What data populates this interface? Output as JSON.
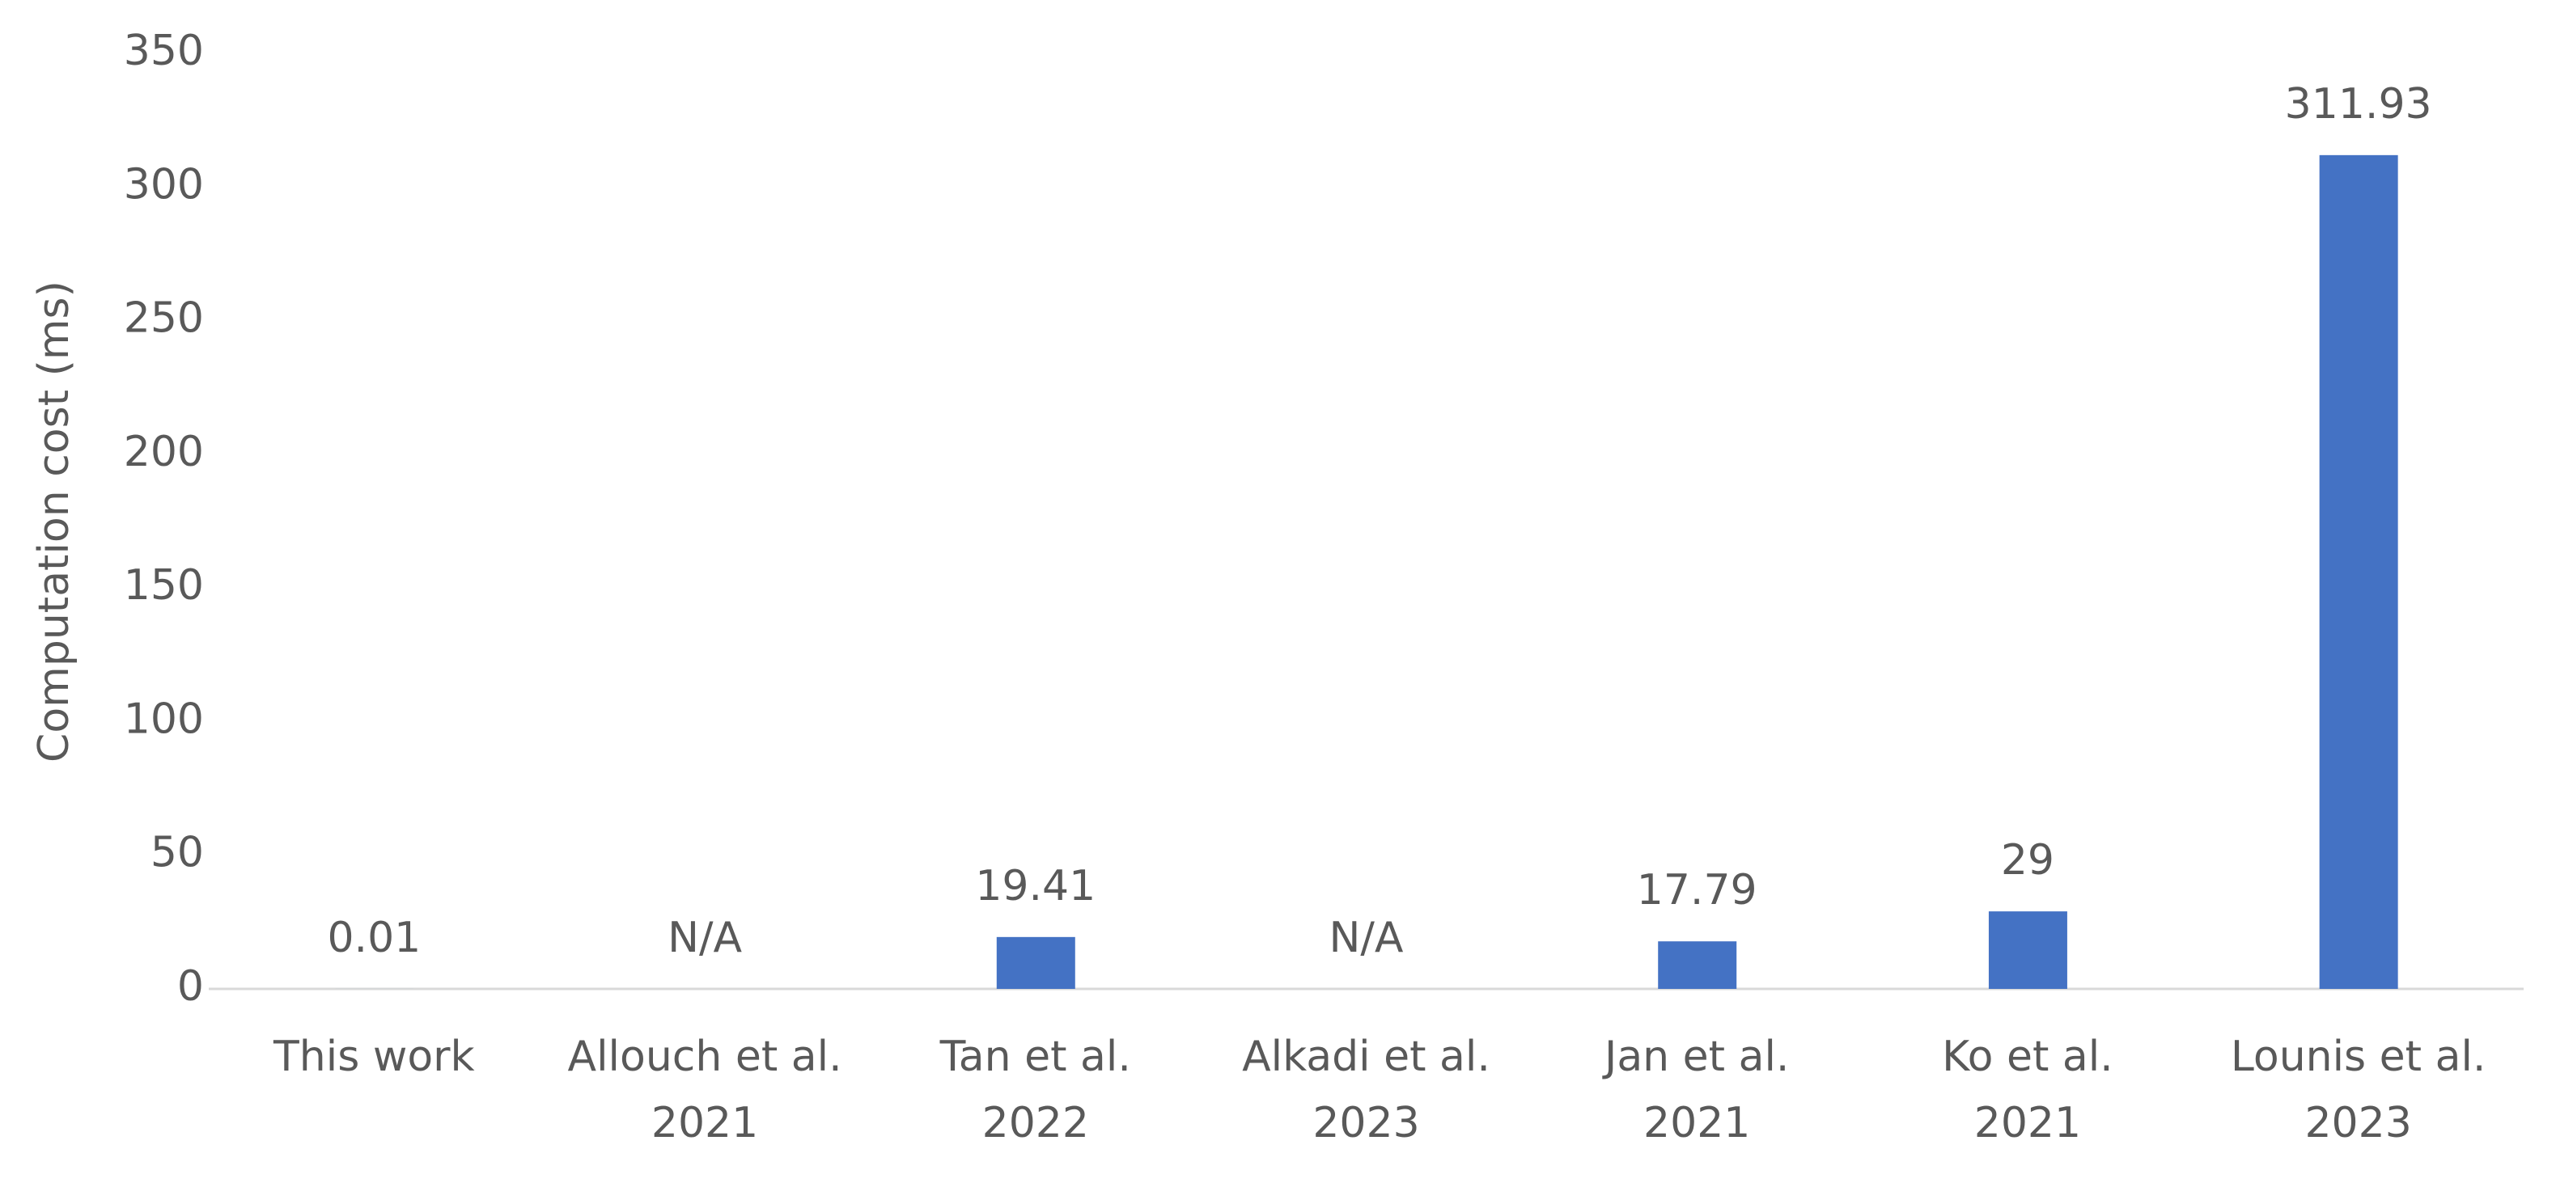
{
  "chart_data": {
    "type": "bar",
    "y_label": "Computation cost (ms)",
    "categories": [
      [
        "This work"
      ],
      [
        "Allouch et al.",
        "2021"
      ],
      [
        "Tan et al.",
        "2022"
      ],
      [
        "Alkadi et al.",
        "2023"
      ],
      [
        "Jan et al.",
        "2021"
      ],
      [
        "Ko et al.",
        "2021"
      ],
      [
        "Lounis et al.",
        "2023"
      ]
    ],
    "values": [
      0.01,
      null,
      19.41,
      null,
      17.79,
      29,
      311.93
    ],
    "value_labels": [
      "0.01",
      "N/A",
      "19.41",
      "N/A",
      "17.79",
      "29",
      "311.93"
    ],
    "color": "#4472c4",
    "ylim": [
      0,
      350
    ],
    "yticks": [
      0,
      50,
      100,
      150,
      200,
      250,
      300,
      350
    ],
    "grid": false
  }
}
